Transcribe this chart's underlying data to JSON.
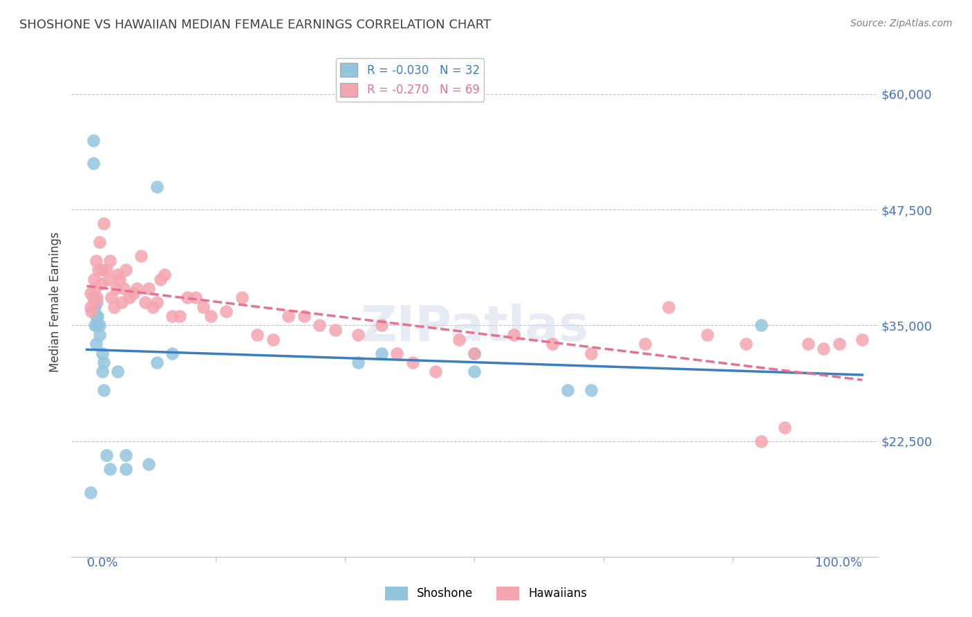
{
  "title": "SHOSHONE VS HAWAIIAN MEDIAN FEMALE EARNINGS CORRELATION CHART",
  "source": "Source: ZipAtlas.com",
  "ylabel": "Median Female Earnings",
  "yticks": [
    22500,
    35000,
    47500,
    60000
  ],
  "ytick_labels": [
    "$22,500",
    "$35,000",
    "$47,500",
    "$60,000"
  ],
  "watermark": "ZIPatlas",
  "shoshone_color": "#92c5de",
  "hawaiian_color": "#f4a5b0",
  "shoshone_line_color": "#3a7ebf",
  "hawaiian_line_color": "#e87090",
  "axis_color": "#4472c4",
  "title_color": "#404040",
  "ylim": [
    10000,
    65000
  ],
  "xlim": [
    -0.02,
    1.02
  ],
  "shoshone_x": [
    0.005,
    0.008,
    0.008,
    0.01,
    0.01,
    0.012,
    0.012,
    0.013,
    0.013,
    0.014,
    0.016,
    0.016,
    0.02,
    0.02,
    0.022,
    0.022,
    0.025,
    0.03,
    0.04,
    0.05,
    0.05,
    0.08,
    0.09,
    0.09,
    0.11,
    0.35,
    0.38,
    0.5,
    0.5,
    0.62,
    0.65,
    0.87
  ],
  "shoshone_y": [
    17000,
    52500,
    55000,
    35000,
    37000,
    33000,
    36000,
    35000,
    37500,
    36000,
    34000,
    35000,
    30000,
    32000,
    28000,
    31000,
    21000,
    19500,
    30000,
    19500,
    21000,
    20000,
    31000,
    50000,
    32000,
    31000,
    32000,
    32000,
    30000,
    28000,
    28000,
    35000
  ],
  "hawaiian_x": [
    0.005,
    0.005,
    0.006,
    0.008,
    0.009,
    0.01,
    0.01,
    0.012,
    0.013,
    0.015,
    0.016,
    0.018,
    0.02,
    0.022,
    0.025,
    0.028,
    0.03,
    0.032,
    0.035,
    0.038,
    0.04,
    0.042,
    0.045,
    0.048,
    0.05,
    0.055,
    0.06,
    0.065,
    0.07,
    0.075,
    0.08,
    0.085,
    0.09,
    0.095,
    0.1,
    0.11,
    0.12,
    0.13,
    0.14,
    0.15,
    0.16,
    0.18,
    0.2,
    0.22,
    0.24,
    0.26,
    0.28,
    0.3,
    0.32,
    0.35,
    0.38,
    0.4,
    0.42,
    0.45,
    0.48,
    0.5,
    0.55,
    0.6,
    0.65,
    0.72,
    0.75,
    0.8,
    0.85,
    0.87,
    0.9,
    0.93,
    0.95,
    0.97,
    1.0
  ],
  "hawaiian_y": [
    37000,
    38500,
    36500,
    38000,
    40000,
    37500,
    39000,
    42000,
    38000,
    41000,
    44000,
    39500,
    41000,
    46000,
    41000,
    40000,
    42000,
    38000,
    37000,
    39000,
    40500,
    40000,
    37500,
    39000,
    41000,
    38000,
    38500,
    39000,
    42500,
    37500,
    39000,
    37000,
    37500,
    40000,
    40500,
    36000,
    36000,
    38000,
    38000,
    37000,
    36000,
    36500,
    38000,
    34000,
    33500,
    36000,
    36000,
    35000,
    34500,
    34000,
    35000,
    32000,
    31000,
    30000,
    33500,
    32000,
    34000,
    33000,
    32000,
    33000,
    37000,
    34000,
    33000,
    22500,
    24000,
    33000,
    32500,
    33000,
    33500
  ]
}
